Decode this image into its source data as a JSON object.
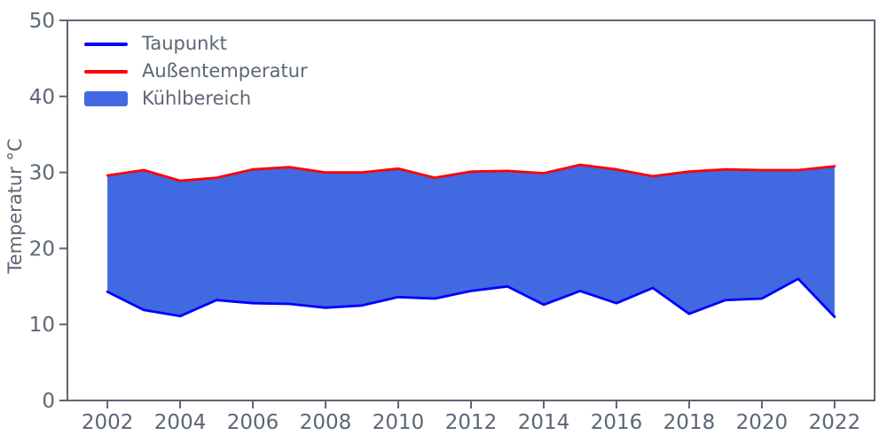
{
  "chart_data": {
    "type": "area",
    "title": "",
    "xlabel": "",
    "ylabel": "Temperatur °C",
    "x": [
      2002,
      2003,
      2004,
      2005,
      2006,
      2007,
      2008,
      2009,
      2010,
      2011,
      2012,
      2013,
      2014,
      2015,
      2016,
      2017,
      2018,
      2019,
      2020,
      2021,
      2022
    ],
    "series": [
      {
        "name": "Taupunkt",
        "color": "#0000ff",
        "role": "lower-bound",
        "values": [
          14.3,
          11.9,
          11.1,
          13.2,
          12.8,
          12.7,
          12.2,
          12.5,
          13.6,
          13.4,
          14.4,
          15.0,
          12.6,
          14.4,
          12.8,
          14.8,
          11.4,
          13.2,
          13.4,
          16.0,
          11.0
        ]
      },
      {
        "name": "Außentemperatur",
        "color": "#ff0000",
        "role": "upper-bound",
        "values": [
          29.6,
          30.3,
          28.9,
          29.3,
          30.4,
          30.7,
          30.0,
          30.0,
          30.5,
          29.3,
          30.1,
          30.2,
          29.9,
          31.0,
          30.4,
          29.5,
          30.1,
          30.4,
          30.3,
          30.3,
          30.8
        ]
      }
    ],
    "area": {
      "name": "Kühlbereich",
      "color": "#4169e1",
      "between": [
        "Taupunkt",
        "Außentemperatur"
      ]
    },
    "xlim": [
      2000.9,
      2023.1
    ],
    "ylim": [
      0,
      50
    ],
    "xticks": [
      2002,
      2004,
      2006,
      2008,
      2010,
      2012,
      2014,
      2016,
      2018,
      2020,
      2022
    ],
    "yticks": [
      0,
      10,
      20,
      30,
      40,
      50
    ],
    "grid": false,
    "legend_position": "upper-left",
    "axis_color": "#5d6674",
    "background_color": "#ffffff"
  }
}
